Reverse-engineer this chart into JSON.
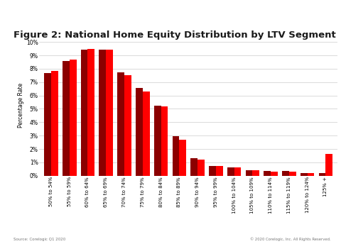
{
  "title": "Figure 2: National Home Equity Distribution by LTV Segment",
  "ylabel": "Percentage Rate",
  "categories": [
    "50% to 54%",
    "55% to 59%",
    "60% to 64%",
    "65% to 69%",
    "70% to 74%",
    "75% to 79%",
    "80% to 84%",
    "85% to 89%",
    "90% to 94%",
    "95% to 99%",
    "100% to 104%",
    "105% to 109%",
    "110% to 114%",
    "115% to 119%",
    "120% to 124%",
    "125% +"
  ],
  "q4_2019": [
    7.7,
    8.6,
    9.45,
    9.45,
    7.75,
    6.55,
    5.25,
    2.95,
    1.3,
    0.75,
    0.62,
    0.42,
    0.35,
    0.35,
    0.2,
    0.2
  ],
  "q1_2020": [
    7.85,
    8.7,
    9.5,
    9.45,
    7.5,
    6.3,
    5.2,
    2.7,
    1.2,
    0.72,
    0.6,
    0.4,
    0.32,
    0.32,
    0.18,
    1.65
  ],
  "color_q4": "#8B0000",
  "color_q1": "#FF0000",
  "ylim_max": 0.105,
  "yticks": [
    0,
    0.01,
    0.02,
    0.03,
    0.04,
    0.05,
    0.06,
    0.07,
    0.08,
    0.09,
    0.1
  ],
  "ytick_labels": [
    "0%",
    "1%",
    "2%",
    "3%",
    "4%",
    "5%",
    "6%",
    "7%",
    "8%",
    "9%",
    "10%"
  ],
  "source_text": "Source: Corelogic Q1 2020",
  "copyright_text": "© 2020 Corelogic, Inc. All Rights Reserved.",
  "background_color": "#ffffff",
  "sidebar_color": "#8B0000",
  "header_color": "#CC0000",
  "bar_width": 0.38,
  "title_fontsize": 9.5,
  "axis_fontsize": 5.5,
  "legend_fontsize": 5.5
}
